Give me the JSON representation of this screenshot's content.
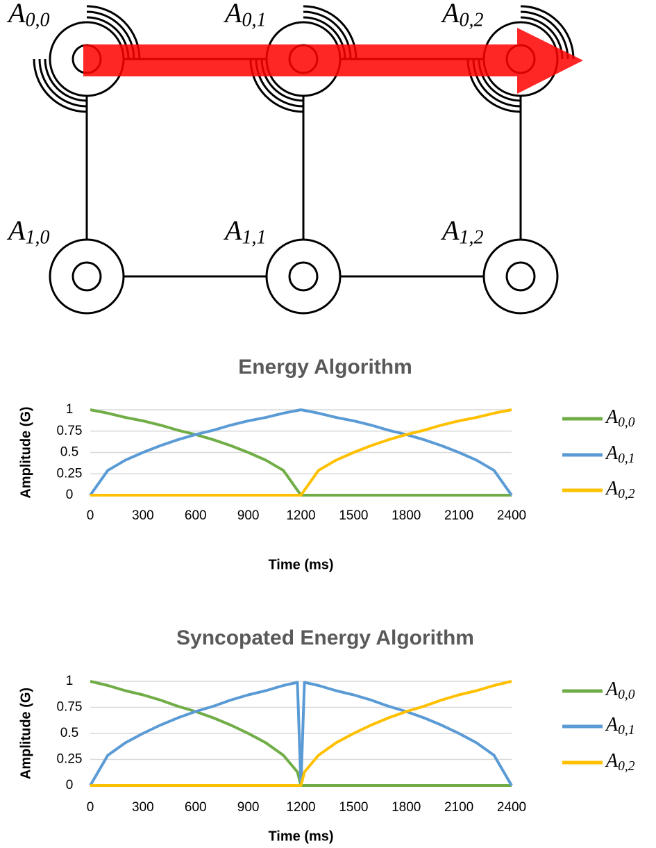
{
  "diagram": {
    "nodes": [
      {
        "label": "A0,0"
      },
      {
        "label": "A0,1"
      },
      {
        "label": "A0,2"
      },
      {
        "label": "A1,0"
      },
      {
        "label": "A1,1"
      },
      {
        "label": "A1,2"
      }
    ]
  },
  "chart_data": [
    {
      "type": "line",
      "title": "Energy Algorithm",
      "x_label": "Time (ms)",
      "y_label": "Amplitude (G)",
      "x": [
        0,
        100,
        200,
        300,
        400,
        500,
        600,
        700,
        800,
        900,
        1000,
        1100,
        1200,
        1300,
        1400,
        1500,
        1600,
        1700,
        1800,
        1900,
        2000,
        2100,
        2200,
        2300,
        2400
      ],
      "series": [
        {
          "name": "A0,0",
          "color": "#70ad47",
          "values": [
            1,
            0.96,
            0.91,
            0.87,
            0.82,
            0.76,
            0.71,
            0.65,
            0.58,
            0.5,
            0.41,
            0.29,
            0,
            0,
            0,
            0,
            0,
            0,
            0,
            0,
            0,
            0,
            0,
            0,
            0
          ]
        },
        {
          "name": "A0,1",
          "color": "#5b9bd5",
          "values": [
            0,
            0.29,
            0.41,
            0.5,
            0.58,
            0.65,
            0.71,
            0.76,
            0.82,
            0.87,
            0.91,
            0.96,
            1,
            0.96,
            0.91,
            0.87,
            0.82,
            0.76,
            0.71,
            0.65,
            0.58,
            0.5,
            0.41,
            0.29,
            0
          ]
        },
        {
          "name": "A0,2",
          "color": "#ffc000",
          "values": [
            0,
            0,
            0,
            0,
            0,
            0,
            0,
            0,
            0,
            0,
            0,
            0,
            0,
            0.29,
            0.41,
            0.5,
            0.58,
            0.65,
            0.71,
            0.76,
            0.82,
            0.87,
            0.91,
            0.96,
            1
          ]
        }
      ],
      "xlim": [
        0,
        2400
      ],
      "xticks": [
        0,
        300,
        600,
        900,
        1200,
        1500,
        1800,
        2100,
        2400
      ],
      "ylim": [
        0,
        1
      ],
      "yticks": [
        0,
        0.25,
        0.5,
        0.75,
        1
      ],
      "grid": true,
      "legend": "right"
    },
    {
      "type": "line",
      "title": "Syncopated Energy Algorithm",
      "x_label": "Time (ms)",
      "y_label": "Amplitude (G)",
      "x": [
        0,
        100,
        200,
        300,
        400,
        500,
        600,
        700,
        800,
        900,
        1000,
        1100,
        1180,
        1200,
        1220,
        1300,
        1400,
        1500,
        1600,
        1700,
        1800,
        1900,
        2000,
        2100,
        2200,
        2300,
        2400
      ],
      "series": [
        {
          "name": "A0,0",
          "color": "#70ad47",
          "values": [
            1,
            0.96,
            0.91,
            0.87,
            0.82,
            0.76,
            0.71,
            0.65,
            0.58,
            0.5,
            0.41,
            0.29,
            0.13,
            0,
            0,
            0,
            0,
            0,
            0,
            0,
            0,
            0,
            0,
            0,
            0,
            0,
            0
          ]
        },
        {
          "name": "A0,1",
          "color": "#5b9bd5",
          "values": [
            0,
            0.29,
            0.41,
            0.5,
            0.58,
            0.65,
            0.71,
            0.76,
            0.82,
            0.87,
            0.91,
            0.96,
            0.99,
            0,
            0.99,
            0.96,
            0.91,
            0.87,
            0.82,
            0.76,
            0.71,
            0.65,
            0.58,
            0.5,
            0.41,
            0.29,
            0
          ]
        },
        {
          "name": "A0,2",
          "color": "#ffc000",
          "values": [
            0,
            0,
            0,
            0,
            0,
            0,
            0,
            0,
            0,
            0,
            0,
            0,
            0,
            0,
            0.13,
            0.29,
            0.41,
            0.5,
            0.58,
            0.65,
            0.71,
            0.76,
            0.82,
            0.87,
            0.91,
            0.96,
            1
          ]
        }
      ],
      "xlim": [
        0,
        2400
      ],
      "xticks": [
        0,
        300,
        600,
        900,
        1200,
        1500,
        1800,
        2100,
        2400
      ],
      "ylim": [
        0,
        1
      ],
      "yticks": [
        0,
        0.25,
        0.5,
        0.75,
        1
      ],
      "grid": true,
      "legend": "right"
    }
  ]
}
